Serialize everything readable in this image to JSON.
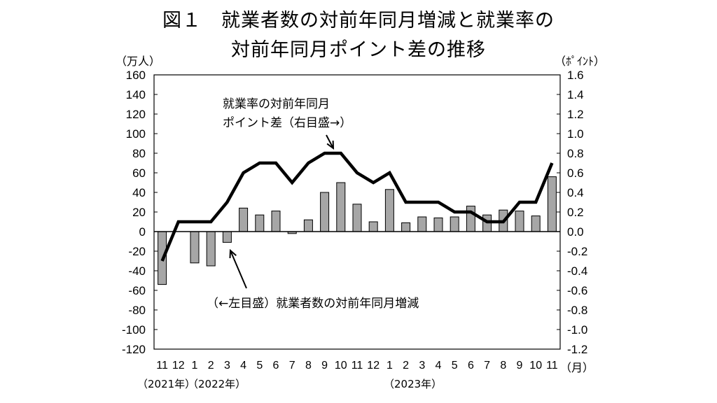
{
  "title": {
    "line1": "図１　就業者数の対前年同月増減と就業率の",
    "line2": "対前年同月ポイント差の推移"
  },
  "units": {
    "left": "（万人）",
    "right": "（ﾎﾟｲﾝﾄ）"
  },
  "annotations": {
    "rate_line1": "就業率の対前年同月",
    "rate_line2": "ポイント差（右目盛→）",
    "persons": "（←左目盛）就業者数の対前年同月増減"
  },
  "x_unit": "（月）",
  "years": {
    "y2021": "（2021年）",
    "y2022": "（2022年）",
    "y2023": "（2023年）"
  },
  "colors": {
    "bar_fill": "#a6a6a6",
    "bar_stroke": "#000000",
    "line": "#000000"
  },
  "chart_data": {
    "type": "bar",
    "categories": [
      "11",
      "12",
      "1",
      "2",
      "3",
      "4",
      "5",
      "6",
      "7",
      "8",
      "9",
      "10",
      "11",
      "12",
      "1",
      "2",
      "3",
      "4",
      "5",
      "6",
      "7",
      "8",
      "9",
      "10",
      "11"
    ],
    "left_axis": {
      "ylim": [
        -120,
        160
      ],
      "ticks": [
        "160",
        "140",
        "120",
        "100",
        "80",
        "60",
        "40",
        "20",
        "0",
        "-20",
        "-40",
        "-60",
        "-80",
        "-100",
        "-120"
      ]
    },
    "right_axis": {
      "ylim": [
        -1.2,
        1.6
      ],
      "ticks": [
        "1.6",
        "1.4",
        "1.2",
        "1.0",
        "0.8",
        "0.6",
        "0.4",
        "0.2",
        "0.0",
        "-0.2",
        "-0.4",
        "-0.6",
        "-0.8",
        "-1.0",
        "-1.2"
      ]
    },
    "series": [
      {
        "type": "bar",
        "axis": "left",
        "values": [
          -54,
          0,
          -32,
          -35,
          -11,
          24,
          17,
          21,
          -2,
          12,
          40,
          50,
          28,
          10,
          43,
          9,
          15,
          14,
          15,
          26,
          17,
          22,
          21,
          16,
          56
        ]
      },
      {
        "type": "line",
        "axis": "right",
        "values": [
          -0.3,
          0.1,
          0.1,
          0.1,
          0.3,
          0.6,
          0.7,
          0.7,
          0.5,
          0.7,
          0.8,
          0.8,
          0.6,
          0.5,
          0.6,
          0.3,
          0.3,
          0.3,
          0.2,
          0.2,
          0.1,
          0.1,
          0.3,
          0.3,
          0.7
        ]
      }
    ]
  }
}
